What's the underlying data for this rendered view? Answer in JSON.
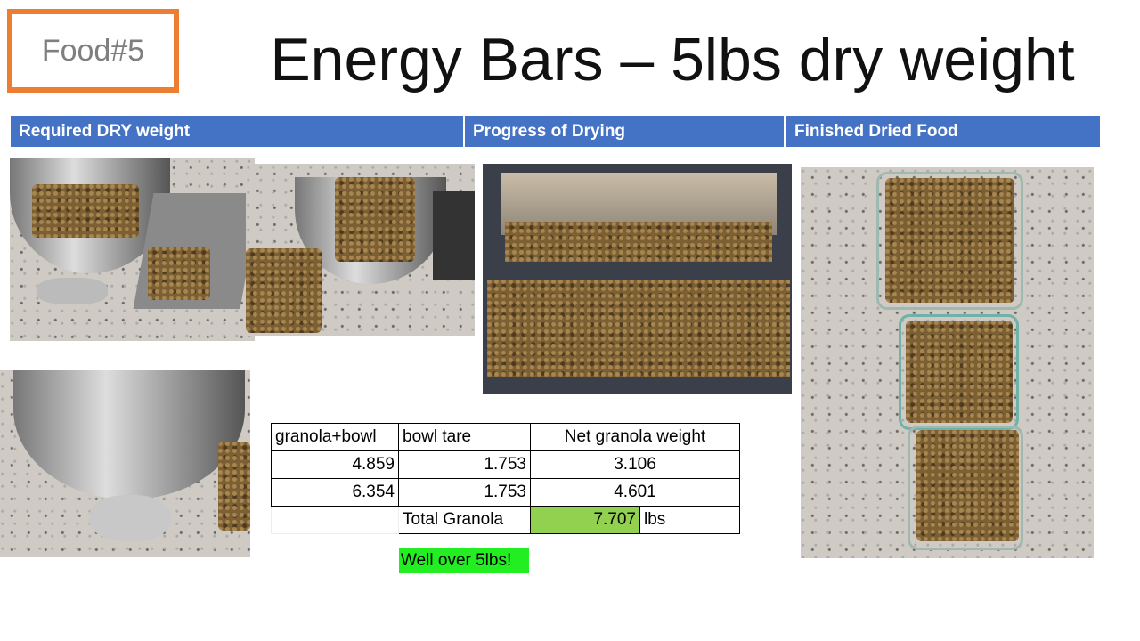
{
  "label": "Food#5",
  "title": "Energy Bars – 5lbs dry weight",
  "headers": [
    "Required DRY weight",
    "Progress of Drying",
    "Finished Dried Food"
  ],
  "table": {
    "header": [
      "granola+bowl",
      "bowl tare",
      "Net granola weight"
    ],
    "rows": [
      [
        4.859,
        1.753,
        3.106
      ],
      [
        6.354,
        1.753,
        4.601
      ]
    ],
    "total": {
      "label": "Total Granola",
      "value": 7.707,
      "unit": "lbs"
    }
  },
  "note": "Well over 5lbs!"
}
